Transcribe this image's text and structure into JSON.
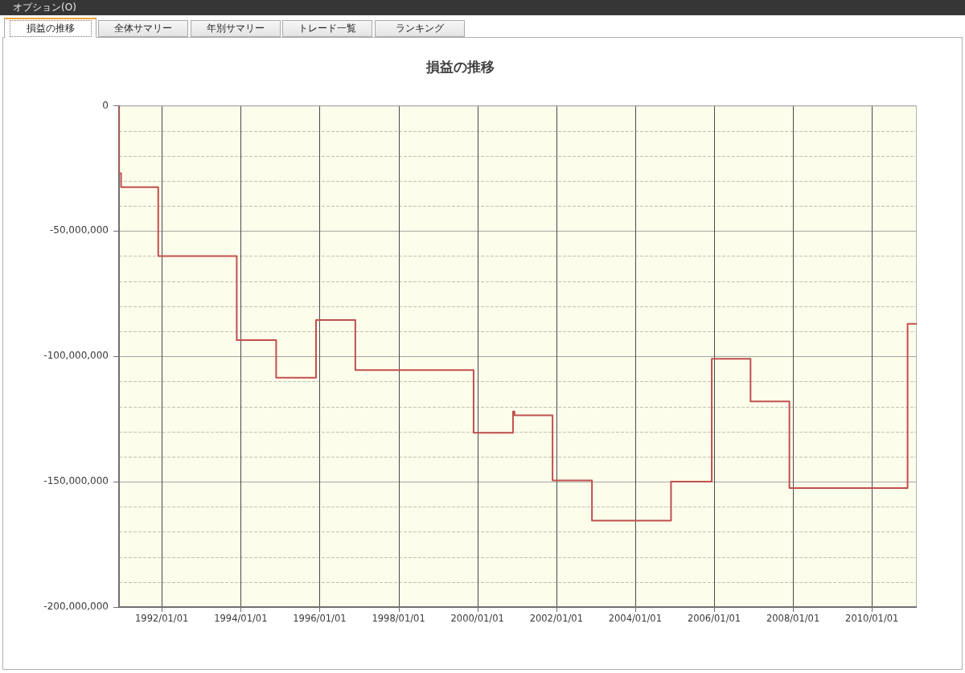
{
  "chart_data": {
    "type": "step",
    "title": "損益の推移",
    "annotations": [
      "オプション(O)",
      "損益の推移",
      "全体サマリー",
      "年別サマリー",
      "トレード一覧",
      "ランキング"
    ],
    "x": [
      "1990-12-01",
      "1990-12-02",
      "1990-12-20",
      "1991-11-29",
      "1993-11-25",
      "1994-11-25",
      "1995-11-29",
      "1996-11-27",
      "1999-11-27",
      "2000-11-26",
      "2000-12-10",
      "2001-11-27",
      "2002-11-27",
      "2004-11-28",
      "2005-12-10",
      "2006-12-04",
      "2007-11-29",
      "2010-11-27",
      "2011-02-20"
    ],
    "values": [
      0,
      -27000000,
      -32500000,
      -60000000,
      -93500000,
      -108500000,
      -85500000,
      -105500000,
      -130500000,
      -122000000,
      -123500000,
      -149500000,
      -165500000,
      -150000000,
      -101000000,
      -118000000,
      -152500000,
      -87000000,
      -87000000
    ],
    "color": "#c0504d",
    "xlim": [
      "1990-12-01",
      "2011-02-20"
    ],
    "xticks": [
      {
        "value": "1992-01-01",
        "label": "1992/01/01"
      },
      {
        "value": "1994-01-01",
        "label": "1994/01/01"
      },
      {
        "value": "1996-01-01",
        "label": "1996/01/01"
      },
      {
        "value": "1998-01-01",
        "label": "1998/01/01"
      },
      {
        "value": "2000-01-01",
        "label": "2000/01/01"
      },
      {
        "value": "2002-01-01",
        "label": "2002/01/01"
      },
      {
        "value": "2004-01-01",
        "label": "2004/01/01"
      },
      {
        "value": "2006-01-01",
        "label": "2006/01/01"
      },
      {
        "value": "2008-01-01",
        "label": "2008/01/01"
      },
      {
        "value": "2010-01-01",
        "label": "2010/01/01"
      }
    ],
    "ylim": [
      -200000000,
      0
    ],
    "yticks": [
      {
        "value": -200000000,
        "label": "-200,000,000"
      },
      {
        "value": -190000000,
        "label": null
      },
      {
        "value": -180000000,
        "label": null
      },
      {
        "value": -170000000,
        "label": null
      },
      {
        "value": -160000000,
        "label": null
      },
      {
        "value": -150000000,
        "label": "-150,000,000"
      },
      {
        "value": -140000000,
        "label": null
      },
      {
        "value": -130000000,
        "label": null
      },
      {
        "value": -120000000,
        "label": null
      },
      {
        "value": -110000000,
        "label": null
      },
      {
        "value": -100000000,
        "label": "-100,000,000"
      },
      {
        "value": -90000000,
        "label": null
      },
      {
        "value": -80000000,
        "label": null
      },
      {
        "value": -70000000,
        "label": null
      },
      {
        "value": -60000000,
        "label": null
      },
      {
        "value": -50000000,
        "label": "-50,000,000"
      },
      {
        "value": -40000000,
        "label": null
      },
      {
        "value": -30000000,
        "label": null
      },
      {
        "value": -20000000,
        "label": null
      },
      {
        "value": -10000000,
        "label": null
      },
      0
    ],
    "grid": true
  }
}
